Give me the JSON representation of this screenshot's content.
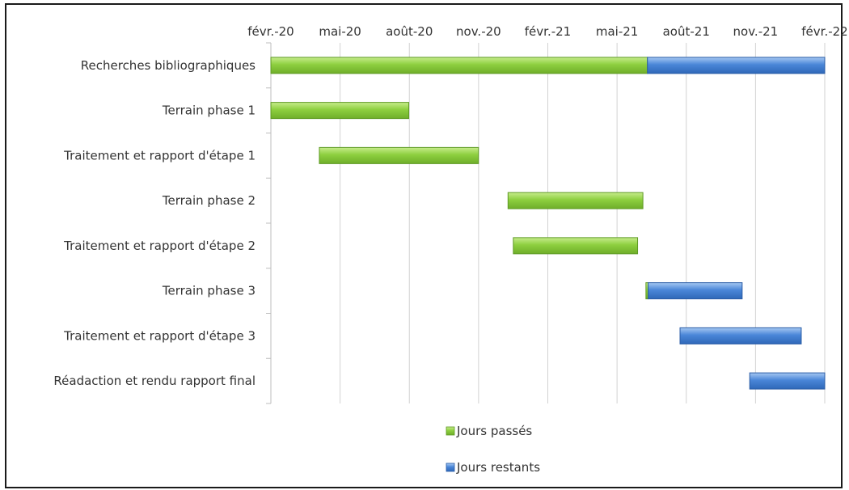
{
  "chart_data": {
    "type": "bar",
    "orientation": "horizontal",
    "stacked": true,
    "x_axis_position": "top",
    "x_ticks": [
      "févr.-20",
      "mai-20",
      "août-20",
      "nov.-20",
      "févr.-21",
      "mai-21",
      "août-21",
      "nov.-21",
      "févr.-22"
    ],
    "xlim": [
      "2020-02-01",
      "2022-02-01"
    ],
    "categories": [
      "Recherches bibliographiques",
      "Terrain phase 1",
      "Traitement et rapport d'étape 1",
      "Terrain phase 2",
      "Traitement et rapport d'étape 2",
      "Terrain phase 3",
      "Traitement et rapport d'étape 3",
      "Réadaction et rendu rapport final"
    ],
    "tasks": [
      {
        "start": "2020-02-01",
        "split": "2021-06-12",
        "end": "2022-02-01"
      },
      {
        "start": "2020-02-01",
        "split": "2020-08-01",
        "end": "2020-08-01"
      },
      {
        "start": "2020-04-05",
        "split": "2020-11-01",
        "end": "2020-11-01"
      },
      {
        "start": "2020-12-10",
        "split": "2021-06-06",
        "end": "2021-06-06"
      },
      {
        "start": "2020-12-17",
        "split": "2021-05-30",
        "end": "2021-05-30"
      },
      {
        "start": "2021-06-10",
        "split": "2021-06-13",
        "end": "2021-10-15"
      },
      {
        "start": "2021-07-25",
        "split": "2021-07-25",
        "end": "2022-01-01"
      },
      {
        "start": "2021-10-25",
        "split": "2021-10-25",
        "end": "2022-02-01"
      }
    ],
    "series": [
      {
        "name": "Jours passés",
        "color": "#8dcf3f"
      },
      {
        "name": "Jours restants",
        "color": "#4a86d8"
      }
    ],
    "legend_position": "bottom",
    "grid": "vertical"
  }
}
